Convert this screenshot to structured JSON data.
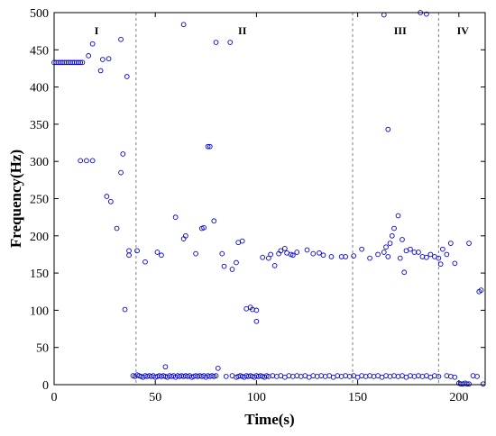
{
  "chart_data": {
    "type": "scatter",
    "title": "",
    "xlabel": "Time(s)",
    "ylabel": "Frequency(Hz)",
    "xlim": [
      0,
      213
    ],
    "ylim": [
      0,
      500
    ],
    "xticks": [
      0,
      50,
      100,
      150,
      200
    ],
    "yticks": [
      0,
      50,
      100,
      150,
      200,
      250,
      300,
      350,
      400,
      450,
      500
    ],
    "grid": false,
    "marker": "open-circle",
    "marker_color": "#0000cc",
    "divider_color": "#808080",
    "dividers": [
      40.5,
      147.5,
      190
    ],
    "regions": [
      {
        "label": "I",
        "x": 21
      },
      {
        "label": "II",
        "x": 93
      },
      {
        "label": "III",
        "x": 171
      },
      {
        "label": "IV",
        "x": 202
      }
    ],
    "series": [
      {
        "x": [
          0,
          1,
          2,
          3,
          4,
          5,
          6,
          7,
          8,
          9,
          10,
          11,
          12,
          13,
          14,
          13,
          16,
          19,
          17,
          19,
          23,
          24,
          27,
          26,
          28,
          31,
          33,
          34,
          33,
          35,
          37,
          36,
          37,
          39,
          40,
          41,
          42,
          43,
          44,
          45,
          46,
          47,
          48,
          49,
          50,
          51,
          52,
          53,
          54,
          55,
          56,
          57,
          58,
          59,
          60,
          61,
          62,
          63,
          64,
          65,
          66,
          67,
          68,
          69,
          70,
          71,
          72,
          73,
          74,
          75,
          76,
          77,
          78,
          79,
          80,
          85,
          88,
          90,
          91,
          92,
          93,
          94,
          95,
          96,
          97,
          98,
          99,
          100,
          101,
          102,
          103,
          104,
          105,
          106,
          108,
          110,
          112,
          114,
          116,
          118,
          120,
          122,
          124,
          126,
          128,
          130,
          132,
          134,
          136,
          138,
          140,
          142,
          144,
          146,
          148,
          150,
          152,
          154,
          156,
          158,
          160,
          162,
          164,
          166,
          168,
          170,
          172,
          174,
          176,
          178,
          180,
          182,
          184,
          186,
          188,
          190,
          194,
          196,
          198,
          200,
          201,
          202,
          203,
          204,
          205,
          207,
          209,
          212,
          41,
          45,
          51,
          53,
          55,
          60,
          64,
          65,
          70,
          73,
          74,
          77,
          79,
          81,
          83,
          84,
          88,
          90,
          91,
          93,
          95,
          97,
          98,
          100,
          103,
          106,
          107,
          109,
          111,
          112,
          114,
          115,
          117,
          118,
          120,
          125,
          128,
          131,
          133,
          137,
          142,
          144,
          148,
          152,
          156,
          160,
          163,
          164,
          165,
          166,
          167,
          168,
          170,
          171,
          172,
          173,
          174,
          176,
          178,
          180,
          182,
          184,
          186,
          188,
          190,
          191,
          192,
          194,
          196,
          198,
          205,
          210,
          211,
          64,
          76,
          80,
          87,
          100,
          163,
          165,
          181,
          184
        ],
        "y": [
          433,
          433,
          433,
          433,
          433,
          433,
          433,
          433,
          433,
          433,
          433,
          433,
          433,
          433,
          433,
          301,
          301,
          301,
          442,
          458,
          422,
          437,
          438,
          253,
          246,
          210,
          285,
          310,
          464,
          101,
          180,
          414,
          174,
          12,
          11,
          13,
          12,
          11,
          10,
          12,
          11,
          12,
          11,
          12,
          10,
          11,
          12,
          11,
          12,
          11,
          10,
          12,
          11,
          12,
          10,
          12,
          11,
          12,
          11,
          12,
          11,
          12,
          10,
          11,
          12,
          11,
          12,
          11,
          12,
          10,
          12,
          11,
          12,
          11,
          12,
          11,
          12,
          10,
          11,
          12,
          11,
          10,
          12,
          11,
          12,
          11,
          10,
          12,
          11,
          12,
          11,
          10,
          12,
          11,
          12,
          11,
          12,
          10,
          12,
          11,
          12,
          11,
          12,
          10,
          12,
          11,
          12,
          11,
          12,
          10,
          12,
          11,
          12,
          11,
          12,
          10,
          12,
          11,
          12,
          11,
          12,
          10,
          12,
          11,
          12,
          11,
          12,
          10,
          12,
          11,
          12,
          11,
          12,
          10,
          12,
          11,
          12,
          11,
          10,
          2,
          1,
          1,
          2,
          1,
          1,
          12,
          11,
          1,
          180,
          165,
          178,
          174,
          24,
          225,
          196,
          200,
          176,
          210,
          211,
          320,
          220,
          22,
          176,
          159,
          155,
          164,
          191,
          193,
          102,
          104,
          101,
          85,
          171,
          170,
          175,
          160,
          176,
          180,
          183,
          177,
          175,
          174,
          178,
          181,
          176,
          177,
          174,
          172,
          172,
          172,
          173,
          182,
          170,
          175,
          178,
          185,
          172,
          190,
          200,
          210,
          227,
          170,
          195,
          151,
          180,
          182,
          178,
          178,
          172,
          171,
          175,
          172,
          170,
          162,
          182,
          175,
          190,
          163,
          190,
          125,
          127,
          484,
          320,
          460,
          460,
          100,
          497,
          343,
          500,
          498
        ]
      }
    ]
  }
}
